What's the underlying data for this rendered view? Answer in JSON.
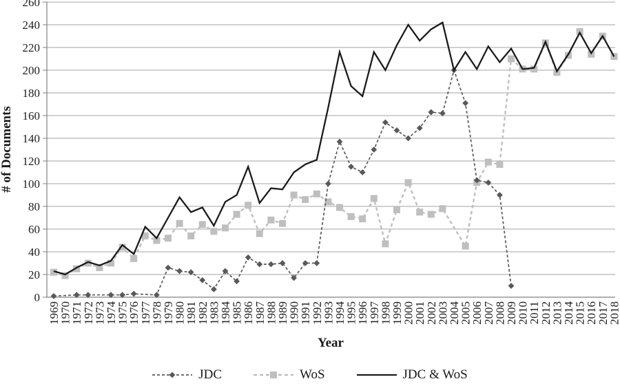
{
  "figure_title": "",
  "chart_data": {
    "type": "line",
    "title": "",
    "xlabel": "Year",
    "ylabel": "# of Documents",
    "ylim": [
      0,
      260
    ],
    "ytick_step": 20,
    "ytick_labels": [
      "0",
      "20",
      "40",
      "60",
      "80",
      "100",
      "120",
      "140",
      "160",
      "180",
      "200",
      "220",
      "240",
      "260"
    ],
    "grid": true,
    "legend_position": "bottom",
    "grid_color": "#a3a3a3",
    "axis_color": "#808080",
    "text_color": "#1f1f1f",
    "x": [
      "1969",
      "1970",
      "1971",
      "1972",
      "1973",
      "1974",
      "1975",
      "1976",
      "1977",
      "1978",
      "1979",
      "1980",
      "1981",
      "1982",
      "1983",
      "1984",
      "1985",
      "1986",
      "1987",
      "1988",
      "1989",
      "1990",
      "1991",
      "1992",
      "1993",
      "1994",
      "1995",
      "1996",
      "1997",
      "1998",
      "1999",
      "2000",
      "2001",
      "2002",
      "2003",
      "2004",
      "2005",
      "2006",
      "2007",
      "2008",
      "2009",
      "2010",
      "2011",
      "2012",
      "2013",
      "2014",
      "2015",
      "2016",
      "2017",
      "2018"
    ],
    "series": [
      {
        "name": "JDC",
        "color": "#595959",
        "dash": [
          4,
          3
        ],
        "line_width": 1.7,
        "marker": "diamond",
        "values": [
          1,
          null,
          2,
          2,
          null,
          2,
          2,
          3,
          null,
          2,
          26,
          23,
          22,
          15,
          7,
          23,
          14,
          35,
          29,
          29,
          30,
          17,
          30,
          30,
          100,
          137,
          115,
          110,
          130,
          154,
          147,
          140,
          149,
          163,
          162,
          200,
          171,
          103,
          101,
          90,
          10,
          null,
          null,
          null,
          null,
          null,
          null,
          null,
          null,
          null
        ]
      },
      {
        "name": "WoS",
        "color": "#bfbfbf",
        "dash": [
          5,
          4
        ],
        "line_width": 2.4,
        "marker": "square",
        "values": [
          22,
          19,
          25,
          30,
          26,
          30,
          44,
          34,
          54,
          50,
          52,
          65,
          54,
          64,
          58,
          61,
          73,
          81,
          56,
          68,
          65,
          90,
          86,
          91,
          84,
          79,
          71,
          69,
          87,
          47,
          77,
          101,
          75,
          73,
          78,
          null,
          45,
          101,
          119,
          117,
          210,
          201,
          201,
          224,
          198,
          213,
          234,
          214,
          230,
          212
        ]
      },
      {
        "name": "JDC & WoS",
        "color": "#1a1a1a",
        "dash": null,
        "line_width": 2.3,
        "marker": "none",
        "values": [
          23,
          20,
          26,
          31,
          28,
          32,
          46,
          38,
          62,
          52,
          70,
          88,
          75,
          79,
          63,
          84,
          90,
          115,
          83,
          96,
          95,
          110,
          117,
          121,
          167,
          216,
          186,
          177,
          216,
          200,
          222,
          240,
          226,
          236,
          242,
          200,
          216,
          201,
          221,
          207,
          219,
          201,
          202,
          225,
          199,
          214,
          233,
          215,
          230,
          212
        ]
      }
    ]
  }
}
